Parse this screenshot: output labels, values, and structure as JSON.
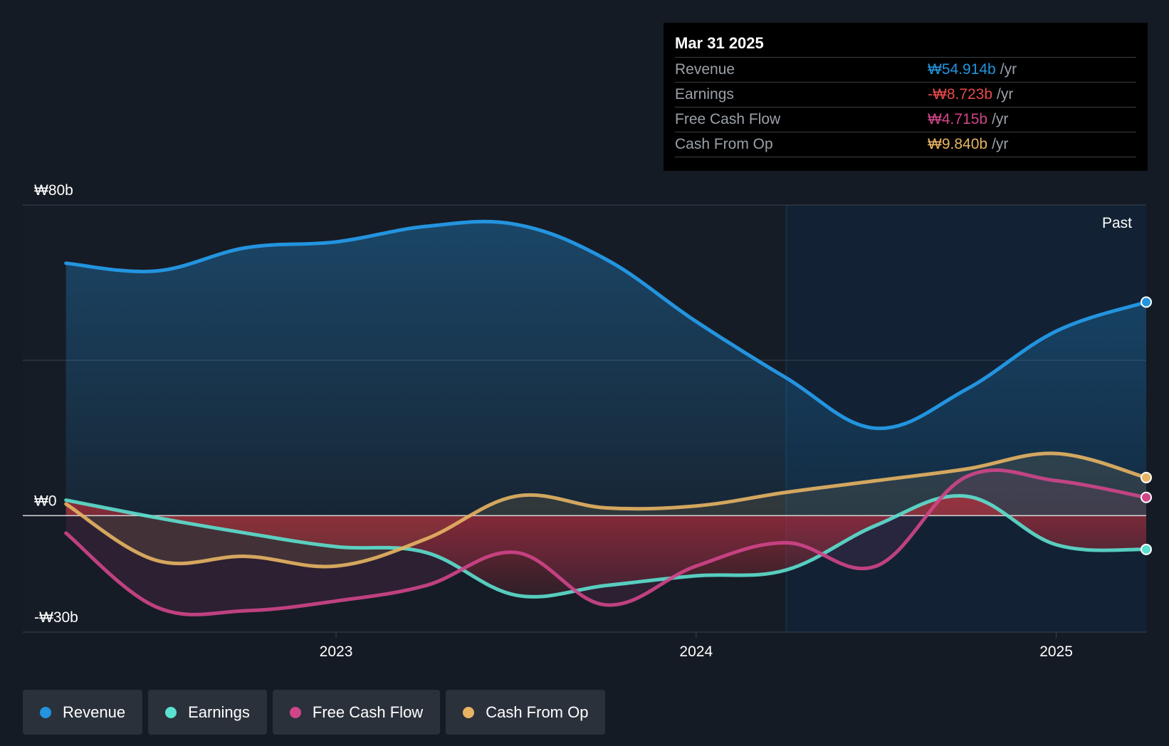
{
  "colors": {
    "background": "#151b24",
    "revenue": "#2394df",
    "earnings": "#5ce0cf",
    "fcf": "#d0458a",
    "cfo": "#e7b463",
    "negative_fill": "#b52e3a",
    "grid": "#3b4250",
    "zero_line": "#d8d8d8"
  },
  "tooltip": {
    "date": "Mar 31 2025",
    "rows": [
      {
        "label": "Revenue",
        "value": "₩54.914b",
        "unit": "/yr",
        "color": "#2394df"
      },
      {
        "label": "Earnings",
        "value": "-₩8.723b",
        "unit": "/yr",
        "color": "#e84a4a"
      },
      {
        "label": "Free Cash Flow",
        "value": "₩4.715b",
        "unit": "/yr",
        "color": "#d0458a"
      },
      {
        "label": "Cash From Op",
        "value": "₩9.840b",
        "unit": "/yr",
        "color": "#e7b463"
      }
    ]
  },
  "past_label": "Past",
  "legend": [
    {
      "name": "Revenue",
      "color": "#2394df"
    },
    {
      "name": "Earnings",
      "color": "#5ce0cf"
    },
    {
      "name": "Free Cash Flow",
      "color": "#d0458a"
    },
    {
      "name": "Cash From Op",
      "color": "#e7b463"
    }
  ],
  "chart_data": {
    "type": "line",
    "title": "",
    "xlabel": "",
    "ylabel": "",
    "unit": "KRW billions",
    "ylim": [
      -30,
      80
    ],
    "y_ticks": [
      {
        "value": 80,
        "label": "₩80b"
      },
      {
        "value": 0,
        "label": "₩0"
      },
      {
        "value": -30,
        "label": "-₩30b"
      }
    ],
    "x_ticks": [
      {
        "value": 2023.0,
        "label": "2023"
      },
      {
        "value": 2024.0,
        "label": "2024"
      },
      {
        "value": 2025.0,
        "label": "2025"
      }
    ],
    "xlim": [
      2022.13,
      2025.25
    ],
    "highlight_start": 2024.25,
    "x": [
      2022.25,
      2022.5,
      2022.75,
      2023.0,
      2023.25,
      2023.5,
      2023.75,
      2024.0,
      2024.25,
      2024.5,
      2024.75,
      2025.0,
      2025.25
    ],
    "series": [
      {
        "name": "Revenue",
        "color": "#2394df",
        "values": [
          65.0,
          63.0,
          69.0,
          70.5,
          74.5,
          75.0,
          66.0,
          50.0,
          35.5,
          22.5,
          32.5,
          47.5,
          55.0
        ]
      },
      {
        "name": "Earnings",
        "color": "#5ce0cf",
        "values": [
          4.0,
          -0.5,
          -4.5,
          -8.0,
          -9.5,
          -20.5,
          -18.0,
          -15.5,
          -14.0,
          -2.5,
          5.0,
          -7.5,
          -8.7
        ]
      },
      {
        "name": "Free Cash Flow",
        "color": "#d0458a",
        "values": [
          -4.5,
          -23.5,
          -24.5,
          -22.0,
          -18.0,
          -9.5,
          -23.0,
          -13.0,
          -7.0,
          -13.0,
          10.0,
          9.0,
          4.7
        ]
      },
      {
        "name": "Cash From Op",
        "color": "#e7b463",
        "values": [
          3.0,
          -11.5,
          -10.5,
          -13.0,
          -6.0,
          5.0,
          2.0,
          2.5,
          6.0,
          9.0,
          12.0,
          16.0,
          9.8
        ]
      }
    ]
  }
}
